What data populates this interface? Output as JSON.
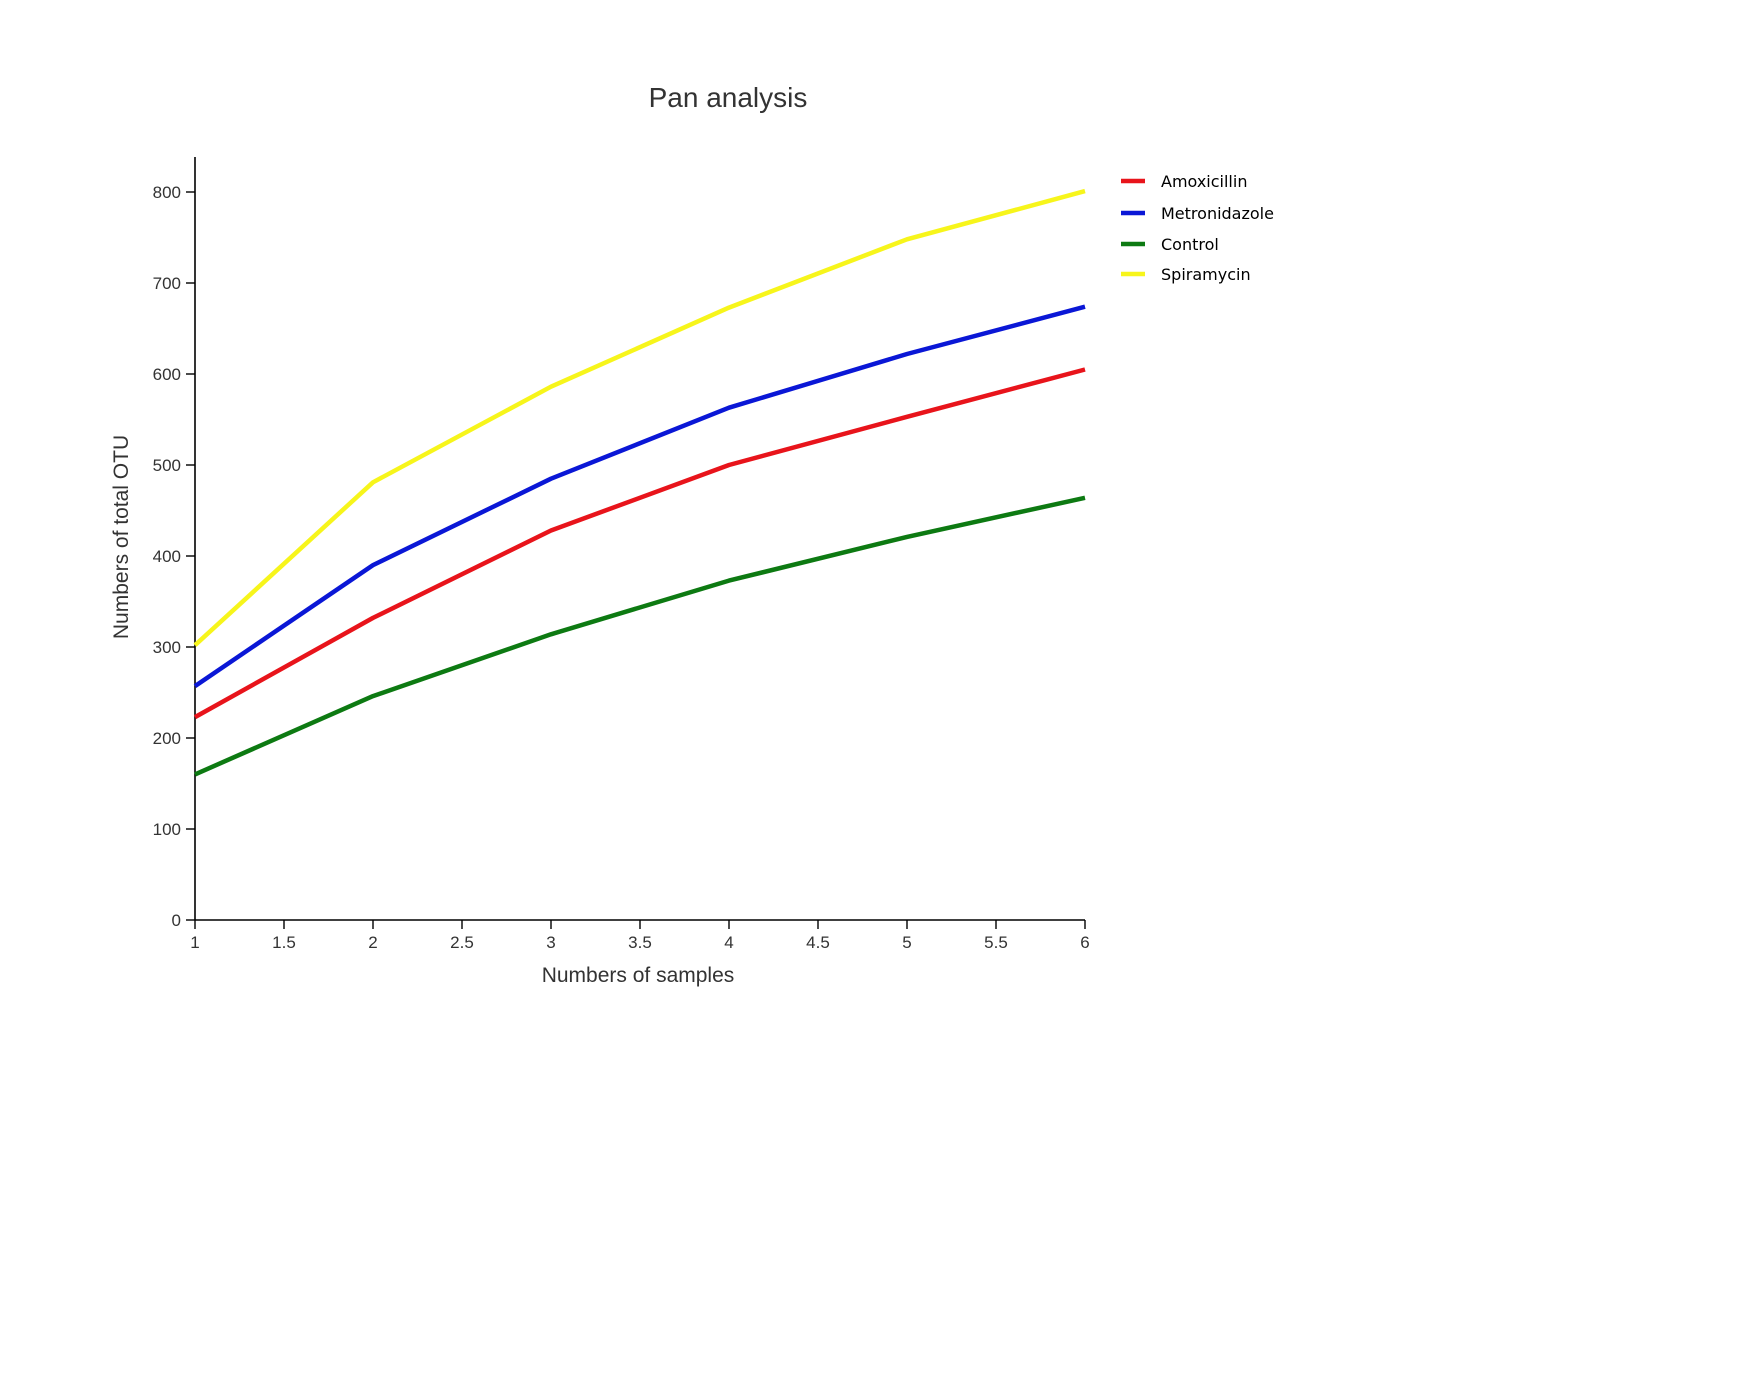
{
  "chart_data": {
    "type": "line",
    "title": "Pan analysis",
    "xlabel": "Numbers of samples",
    "ylabel": "Numbers of total OTU",
    "x": [
      1,
      2,
      3,
      4,
      5,
      6
    ],
    "xlim": [
      1,
      6
    ],
    "ylim": [
      0,
      840
    ],
    "x_ticks": [
      "1",
      "1.5",
      "2",
      "2.5",
      "3",
      "3.5",
      "4",
      "4.5",
      "5",
      "5.5",
      "6"
    ],
    "y_ticks": [
      "0",
      "100",
      "200",
      "300",
      "400",
      "500",
      "600",
      "700",
      "800"
    ],
    "grid": false,
    "legend_position": "top-right, outside plot",
    "series": [
      {
        "name": "Amoxicillin",
        "color": "#e8141b",
        "values": [
          223,
          332,
          428,
          500,
          553,
          605
        ]
      },
      {
        "name": "Metronidazole",
        "color": "#0a17d6",
        "values": [
          257,
          390,
          485,
          563,
          622,
          674
        ]
      },
      {
        "name": "Control",
        "color": "#0d7a12",
        "values": [
          160,
          246,
          314,
          373,
          421,
          464
        ]
      },
      {
        "name": "Spiramycin",
        "color": "#f7f51b",
        "values": [
          302,
          481,
          586,
          673,
          748,
          801
        ]
      }
    ]
  }
}
